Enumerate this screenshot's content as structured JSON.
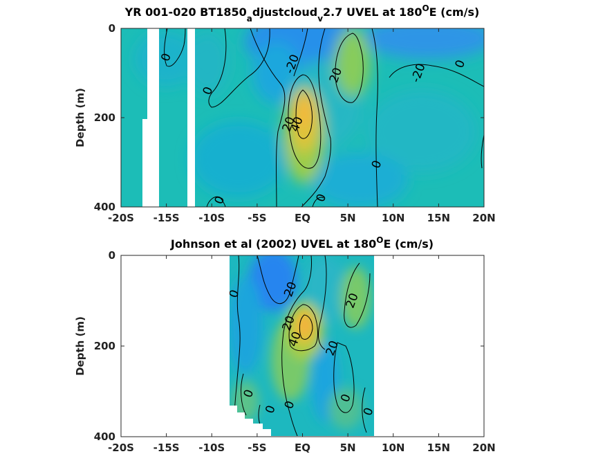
{
  "chart_data": [
    {
      "type": "heatmap",
      "title_parts": [
        "YR 001-020 BT1850",
        "a",
        "djustcloud",
        "v",
        "2.7 UVEL at 180",
        "O",
        "E (cm/s)"
      ],
      "xlabel": "",
      "ylabel": "Depth (m)",
      "x_tick_labels": [
        "-20S",
        "-15S",
        "-10S",
        "-5S",
        "EQ",
        "5N",
        "10N",
        "15N",
        "20N"
      ],
      "x_tick_values": [
        -20,
        -15,
        -10,
        -5,
        0,
        5,
        10,
        15,
        20
      ],
      "y_tick_labels": [
        "0",
        "200",
        "400"
      ],
      "y_tick_values": [
        0,
        200,
        400
      ],
      "xlim": [
        -20,
        20
      ],
      "ylim": [
        0,
        400
      ],
      "y_reversed": true,
      "grid": false,
      "contour_levels": [
        -20,
        0,
        20,
        40
      ],
      "contour_labels": [
        {
          "text": "0",
          "lat": -15,
          "depth": 65
        },
        {
          "text": "0",
          "lat": -10.4,
          "depth": 140
        },
        {
          "text": "-20",
          "lat": -1.1,
          "depth": 80
        },
        {
          "text": "20",
          "lat": 3.7,
          "depth": 105
        },
        {
          "text": "-20",
          "lat": 12.8,
          "depth": 100
        },
        {
          "text": "0",
          "lat": 17.4,
          "depth": 80
        },
        {
          "text": "20",
          "lat": -1.5,
          "depth": 215
        },
        {
          "text": "40",
          "lat": -0.6,
          "depth": 215
        },
        {
          "text": "0",
          "lat": 8.2,
          "depth": 305
        },
        {
          "text": "0",
          "lat": -9.1,
          "depth": 385
        },
        {
          "text": "0",
          "lat": 2.1,
          "depth": 380
        }
      ],
      "features": [
        {
          "name": "equatorial undercurrent core",
          "lat": 0,
          "depth": 175,
          "max_cms": 60
        },
        {
          "name": "north equatorial countercurrent",
          "lat": 5,
          "depth": 70,
          "value_cms": 25
        },
        {
          "name": "south equatorial current",
          "lat": -3,
          "depth": 0,
          "value_cms": -30
        }
      ],
      "missing_lat_bands": [
        [
          -17.4,
          -15.8
        ],
        [
          -13.2,
          -12.4
        ]
      ]
    },
    {
      "type": "heatmap",
      "title_parts": [
        "Johnson et al (2002) UVEL at 180",
        "O",
        "E (cm/s)"
      ],
      "xlabel": "",
      "ylabel": "Depth (m)",
      "x_tick_labels": [
        "-20S",
        "-15S",
        "-10S",
        "-5S",
        "EQ",
        "5N",
        "10N",
        "15N",
        "20N"
      ],
      "x_tick_values": [
        -20,
        -15,
        -10,
        -5,
        0,
        5,
        10,
        15,
        20
      ],
      "y_tick_labels": [
        "0",
        "200",
        "400"
      ],
      "y_tick_values": [
        0,
        200,
        400
      ],
      "xlim": [
        -20,
        20
      ],
      "ylim": [
        0,
        400
      ],
      "y_reversed": true,
      "grid": false,
      "data_lat_range": [
        -8,
        8
      ],
      "contour_levels": [
        -20,
        0,
        20,
        40
      ],
      "contour_labels": [
        {
          "text": "0",
          "lat": -7.5,
          "depth": 85
        },
        {
          "text": "20",
          "lat": -1.3,
          "depth": 75
        },
        {
          "text": "20",
          "lat": 5.5,
          "depth": 100
        },
        {
          "text": "20",
          "lat": -1.5,
          "depth": 150
        },
        {
          "text": "40",
          "lat": -0.8,
          "depth": 185
        },
        {
          "text": "20",
          "lat": 3.3,
          "depth": 205
        },
        {
          "text": "0",
          "lat": -5.9,
          "depth": 305
        },
        {
          "text": "0",
          "lat": -3.5,
          "depth": 340
        },
        {
          "text": "0",
          "lat": -1.4,
          "depth": 330
        },
        {
          "text": "0",
          "lat": 4.8,
          "depth": 315
        },
        {
          "text": "0",
          "lat": 7.3,
          "depth": 345
        }
      ],
      "features": [
        {
          "name": "equatorial undercurrent core",
          "lat": 0.5,
          "depth": 170,
          "max_cms": 55
        },
        {
          "name": "south equatorial current",
          "lat": -3,
          "depth": 40,
          "value_cms": -25
        }
      ]
    }
  ],
  "colormap": [
    "#3e26a8",
    "#2f7df0",
    "#18a8d8",
    "#2cc0a0",
    "#9bcb4c",
    "#f3c33a",
    "#f9fb15"
  ],
  "color_range": [
    -60,
    60
  ]
}
